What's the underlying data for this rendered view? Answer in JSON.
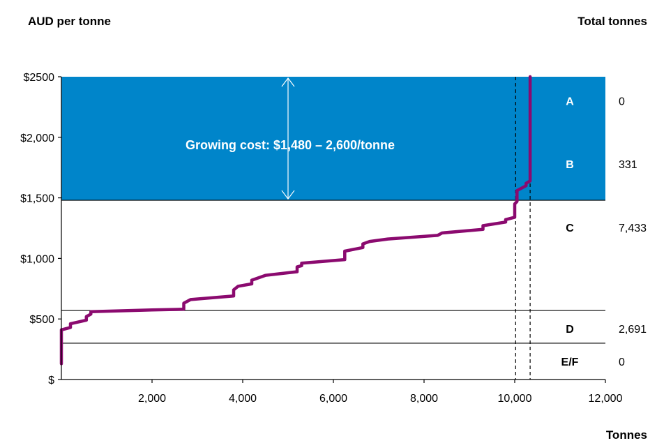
{
  "chart_data": {
    "type": "line",
    "left_title": "AUD per tonne",
    "right_title": "Total tonnes",
    "xlabel": "Tonnes",
    "xlim": [
      0,
      12000
    ],
    "ylim": [
      0,
      2500
    ],
    "x_ticks": [
      {
        "value": 2000,
        "label": "2,000"
      },
      {
        "value": 4000,
        "label": "4,000"
      },
      {
        "value": 6000,
        "label": "6,000"
      },
      {
        "value": 8000,
        "label": "8,000"
      },
      {
        "value": 10000,
        "label": "10,000"
      },
      {
        "value": 12000,
        "label": "12,000"
      }
    ],
    "y_ticks": [
      {
        "value": 0,
        "label": "$"
      },
      {
        "value": 500,
        "label": "$500"
      },
      {
        "value": 1000,
        "label": "$1,000"
      },
      {
        "value": 1500,
        "label": "$1,500"
      },
      {
        "value": 2000,
        "label": "$2,000"
      },
      {
        "value": 2500,
        "label": "$2500"
      }
    ],
    "growing_cost_band": {
      "from": 1480,
      "to": 2500,
      "color": "#0085CA"
    },
    "annotation": "Growing cost: $1,480 – 2,600/tonne",
    "arrow_x": 5000,
    "threshold_lines": [
      1480,
      570,
      300
    ],
    "dashed_lines_x": [
      10020,
      10340
    ],
    "cost_curve": {
      "color": "#8B0A6F",
      "x": [
        0,
        0,
        0,
        200,
        200,
        550,
        550,
        650,
        650,
        2000,
        2700,
        2700,
        2850,
        3800,
        3800,
        3900,
        4200,
        4200,
        4500,
        5200,
        5200,
        5300,
        5300,
        6250,
        6250,
        6650,
        6650,
        6800,
        7200,
        8300,
        8400,
        9300,
        9300,
        9800,
        9800,
        10000,
        10000,
        10050,
        10050,
        10250,
        10250,
        10340,
        10340
      ],
      "y": [
        130,
        300,
        410,
        430,
        460,
        490,
        520,
        540,
        560,
        575,
        580,
        630,
        660,
        690,
        740,
        770,
        790,
        820,
        860,
        890,
        930,
        940,
        960,
        990,
        1060,
        1090,
        1120,
        1140,
        1160,
        1190,
        1210,
        1240,
        1270,
        1300,
        1320,
        1340,
        1450,
        1470,
        1560,
        1600,
        1620,
        1640,
        2500
      ]
    },
    "regions": [
      {
        "label": "A",
        "value": 2300,
        "total": "0",
        "label_color": "#ffffff"
      },
      {
        "label": "B",
        "value": 1780,
        "total": "331",
        "label_color": "#ffffff"
      },
      {
        "label": "C",
        "value": 1255,
        "total": "7,433",
        "label_color": "#000000"
      },
      {
        "label": "D",
        "value": 420,
        "total": "2,691",
        "label_color": "#000000"
      },
      {
        "label": "E/F",
        "value": 150,
        "total": "0",
        "label_color": "#000000"
      }
    ]
  }
}
